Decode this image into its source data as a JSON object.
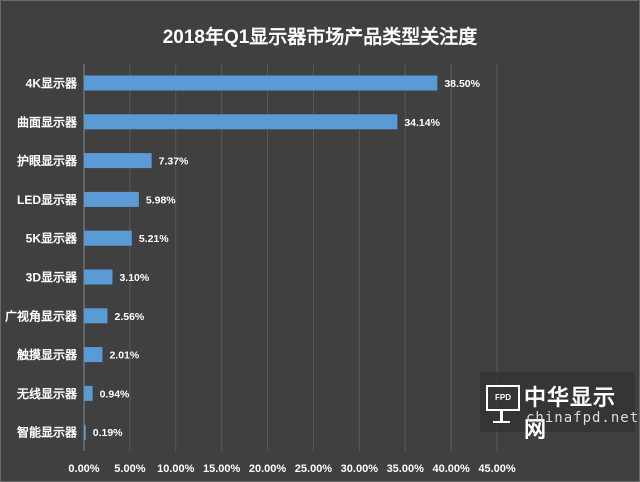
{
  "chart_data": {
    "type": "bar",
    "orientation": "horizontal",
    "title": "2018年Q1显示器市场产品类型关注度",
    "categories": [
      "4K显示器",
      "曲面显示器",
      "护眼显示器",
      "LED显示器",
      "5K显示器",
      "3D显示器",
      "广视角显示器",
      "触摸显示器",
      "无线显示器",
      "智能显示器"
    ],
    "values": [
      38.5,
      34.14,
      7.37,
      5.98,
      5.21,
      3.1,
      2.56,
      2.01,
      0.94,
      0.19
    ],
    "value_labels": [
      "38.50%",
      "34.14%",
      "7.37%",
      "5.98%",
      "5.21%",
      "3.10%",
      "2.56%",
      "2.01%",
      "0.94%",
      "0.19%"
    ],
    "xlim": [
      0,
      45
    ],
    "x_ticks": [
      0,
      5,
      10,
      15,
      20,
      25,
      30,
      35,
      40,
      45
    ],
    "x_tick_labels": [
      "0.00%",
      "5.00%",
      "10.00%",
      "15.00%",
      "20.00%",
      "25.00%",
      "30.00%",
      "35.00%",
      "40.00%",
      "45.00%"
    ],
    "grid": "vertical",
    "legend": "none",
    "colors": {
      "bar": "#5b9bd5",
      "background": "#404040",
      "text": "#ffffff",
      "grid": "#5a5a5a"
    }
  },
  "watermark": {
    "logo_text": "FPD",
    "name": "中华显示网",
    "url": "chinafpd.net"
  }
}
